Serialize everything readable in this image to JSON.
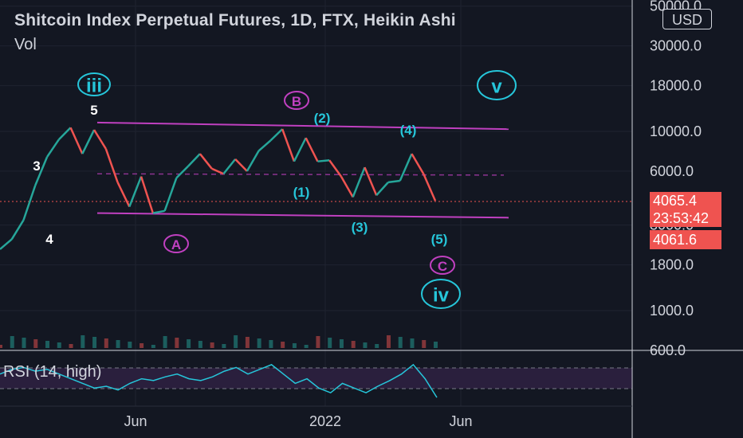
{
  "header": {
    "title": "Shitcoin Index Perpetual Futures, 1D, FTX, Heikin Ashi",
    "volume_label": "Vol"
  },
  "currency_button": "USD",
  "last_price": {
    "value": "4065.4",
    "countdown": "23:53:42",
    "secondary": "4061.6"
  },
  "rsi": {
    "label": "RSI (14, high)"
  },
  "colors": {
    "background": "#131722",
    "up": "#26a69a",
    "down": "#ef5350",
    "channel": "#c040c0",
    "wave_cyan": "#26c6da",
    "rsi_line": "#26c6da",
    "rsi_band": "#2a1f3d"
  },
  "chart_data": {
    "type": "line",
    "y_scale": "log",
    "title": "Shitcoin Index Perpetual Futures, 1D, FTX, Heikin Ashi",
    "y_ticks": [
      "50000.0",
      "30000.0",
      "18000.0",
      "10000.0",
      "6000.0",
      "3000.0",
      "1800.0",
      "1000.0",
      "600.0"
    ],
    "x_ticks": [
      "Jun",
      "2022",
      "Jun"
    ],
    "series": [
      {
        "values": [
          2200,
          2500,
          3200,
          5000,
          7200,
          9000,
          10500,
          7500,
          10200,
          8000,
          5200,
          3800,
          5600,
          3500,
          3600,
          5500,
          6400,
          7500,
          6200,
          5800,
          7000,
          6000,
          7800,
          8900,
          10300,
          6800,
          9200,
          6800,
          6900,
          5600,
          4300,
          6300,
          4400,
          5200,
          5300,
          7500,
          5800,
          4100
        ]
      }
    ],
    "annotations": [
      {
        "text": "iii",
        "style": "circled"
      },
      {
        "text": "5"
      },
      {
        "text": "3"
      },
      {
        "text": "4"
      },
      {
        "text": "A",
        "style": "circled"
      },
      {
        "text": "B",
        "style": "circled"
      },
      {
        "text": "(1)"
      },
      {
        "text": "(2)"
      },
      {
        "text": "(3)"
      },
      {
        "text": "(4)"
      },
      {
        "text": "(5)"
      },
      {
        "text": "C",
        "style": "circled"
      },
      {
        "text": "iv",
        "style": "circled"
      },
      {
        "text": "v",
        "style": "circled"
      }
    ],
    "rsi_values": [
      55,
      60,
      62,
      58,
      60,
      55,
      50,
      45,
      40,
      42,
      38,
      45,
      50,
      48,
      52,
      55,
      50,
      48,
      52,
      58,
      62,
      55,
      60,
      65,
      55,
      45,
      50,
      40,
      35,
      45,
      40,
      35,
      42,
      48,
      55,
      65,
      50,
      30
    ]
  }
}
